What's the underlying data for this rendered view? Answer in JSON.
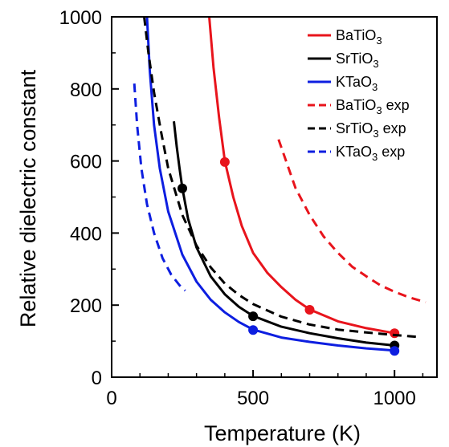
{
  "chart_data": {
    "type": "line",
    "xlabel": "Temperature (K)",
    "ylabel": "Relative dielectric constant",
    "xlim": [
      0,
      1150
    ],
    "ylim": [
      0,
      1000
    ],
    "xticks": [
      0,
      500,
      1000
    ],
    "yticks": [
      0,
      200,
      400,
      600,
      800,
      1000
    ],
    "grid": false,
    "legend_position": "top-right",
    "series": [
      {
        "name": "BaTiO3",
        "name_base": "BaTiO",
        "name_sub": "3",
        "name_suffix": "",
        "color": "#e8141c",
        "dash": "solid",
        "points": [
          [
            345,
            1000
          ],
          [
            360,
            860
          ],
          [
            380,
            720
          ],
          [
            400,
            600
          ],
          [
            430,
            500
          ],
          [
            460,
            420
          ],
          [
            500,
            345
          ],
          [
            550,
            290
          ],
          [
            600,
            250
          ],
          [
            650,
            215
          ],
          [
            700,
            188
          ],
          [
            800,
            155
          ],
          [
            900,
            136
          ],
          [
            1000,
            122
          ]
        ],
        "markers": [
          [
            400,
            597
          ],
          [
            700,
            187
          ],
          [
            1000,
            122
          ]
        ]
      },
      {
        "name": "SrTiO3",
        "name_base": "SrTiO",
        "name_sub": "3",
        "name_suffix": "",
        "color": "#000000",
        "dash": "solid",
        "points": [
          [
            220,
            710
          ],
          [
            230,
            640
          ],
          [
            240,
            580
          ],
          [
            250,
            525
          ],
          [
            270,
            440
          ],
          [
            300,
            360
          ],
          [
            350,
            280
          ],
          [
            400,
            230
          ],
          [
            450,
            195
          ],
          [
            500,
            170
          ],
          [
            600,
            140
          ],
          [
            700,
            122
          ],
          [
            800,
            108
          ],
          [
            900,
            96
          ],
          [
            1000,
            88
          ]
        ],
        "markers": [
          [
            250,
            524
          ],
          [
            500,
            169
          ],
          [
            1000,
            88
          ]
        ]
      },
      {
        "name": "KTaO3",
        "name_base": "KTaO",
        "name_sub": "3",
        "name_suffix": "",
        "color": "#0d1ee0",
        "dash": "solid",
        "points": [
          [
            125,
            1000
          ],
          [
            135,
            850
          ],
          [
            150,
            700
          ],
          [
            170,
            580
          ],
          [
            200,
            460
          ],
          [
            250,
            340
          ],
          [
            300,
            265
          ],
          [
            350,
            215
          ],
          [
            400,
            180
          ],
          [
            450,
            153
          ],
          [
            500,
            132
          ],
          [
            600,
            110
          ],
          [
            700,
            98
          ],
          [
            800,
            88
          ],
          [
            900,
            80
          ],
          [
            1000,
            74
          ]
        ],
        "markers": [
          [
            500,
            131
          ],
          [
            1000,
            73
          ]
        ]
      },
      {
        "name": "BaTiO3 exp",
        "name_base": "BaTiO",
        "name_sub": "3",
        "name_suffix": " exp",
        "color": "#e8141c",
        "dash": "dashed",
        "points": [
          [
            590,
            660
          ],
          [
            650,
            525
          ],
          [
            700,
            450
          ],
          [
            750,
            390
          ],
          [
            800,
            345
          ],
          [
            850,
            307
          ],
          [
            900,
            280
          ],
          [
            950,
            255
          ],
          [
            1000,
            237
          ],
          [
            1050,
            222
          ],
          [
            1110,
            208
          ]
        ],
        "markers": []
      },
      {
        "name": "SrTiO3 exp",
        "name_base": "SrTiO",
        "name_sub": "3",
        "name_suffix": " exp",
        "color": "#000000",
        "dash": "dashed",
        "points": [
          [
            115,
            1000
          ],
          [
            130,
            900
          ],
          [
            150,
            790
          ],
          [
            175,
            680
          ],
          [
            200,
            580
          ],
          [
            250,
            450
          ],
          [
            300,
            365
          ],
          [
            350,
            305
          ],
          [
            400,
            260
          ],
          [
            450,
            228
          ],
          [
            500,
            203
          ],
          [
            600,
            168
          ],
          [
            700,
            146
          ],
          [
            800,
            132
          ],
          [
            900,
            124
          ],
          [
            1000,
            117
          ],
          [
            1080,
            112
          ]
        ],
        "markers": []
      },
      {
        "name": "KTaO3 exp",
        "name_base": "KTaO",
        "name_sub": "3",
        "name_suffix": " exp",
        "color": "#0d1ee0",
        "dash": "dashed",
        "points": [
          [
            80,
            815
          ],
          [
            90,
            700
          ],
          [
            105,
            580
          ],
          [
            125,
            480
          ],
          [
            150,
            400
          ],
          [
            180,
            330
          ],
          [
            210,
            285
          ],
          [
            240,
            255
          ],
          [
            260,
            240
          ]
        ],
        "markers": []
      }
    ]
  }
}
